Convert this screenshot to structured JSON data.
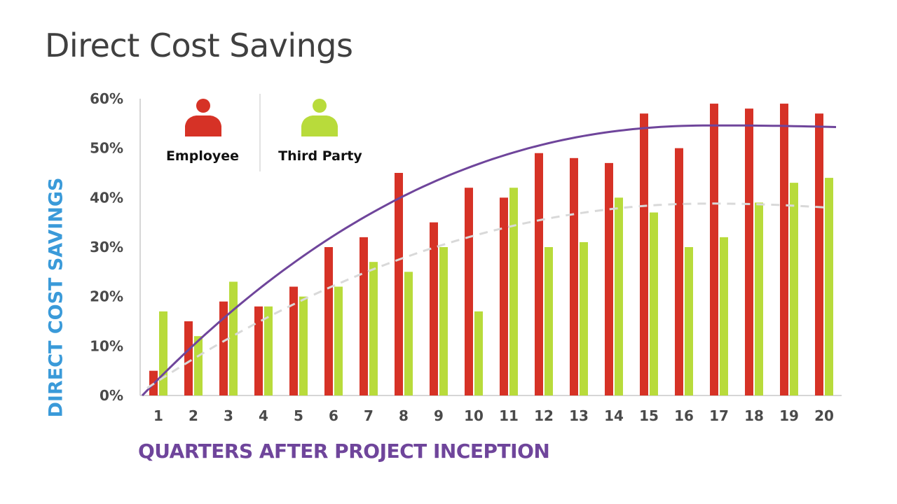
{
  "title": "Direct Cost Savings",
  "colors": {
    "employee": "#d63226",
    "third_party": "#b8db3b",
    "employee_trend": "#6f459b",
    "third_party_trend": "#d9d9d9",
    "y_axis_label": "#3a9ad9",
    "x_axis_label": "#6f459b"
  },
  "legend": {
    "items": [
      {
        "label": "Employee",
        "icon": "person-icon",
        "color": "#d63226"
      },
      {
        "label": "Third Party",
        "icon": "person-icon",
        "color": "#b8db3b"
      }
    ]
  },
  "chart_data": {
    "type": "bar",
    "title": "Direct Cost Savings",
    "xlabel": "QUARTERS AFTER PROJECT INCEPTION",
    "ylabel": "DIRECT COST SAVINGS",
    "categories": [
      "1",
      "2",
      "3",
      "4",
      "5",
      "6",
      "7",
      "8",
      "9",
      "10",
      "11",
      "12",
      "13",
      "14",
      "15",
      "16",
      "17",
      "18",
      "19",
      "20"
    ],
    "yticks": [
      "0%",
      "10%",
      "20%",
      "30%",
      "40%",
      "50%",
      "60%"
    ],
    "ylim": [
      0,
      60
    ],
    "grid": false,
    "legend_position": "top-left inside",
    "series": [
      {
        "name": "Employee",
        "values": [
          5,
          15,
          19,
          18,
          22,
          30,
          32,
          45,
          35,
          42,
          40,
          49,
          48,
          47,
          57,
          50,
          59,
          58,
          59,
          57
        ]
      },
      {
        "name": "Third Party",
        "values": [
          17,
          12,
          23,
          18,
          20,
          22,
          27,
          25,
          30,
          17,
          42,
          30,
          31,
          40,
          37,
          30,
          32,
          39,
          43,
          44
        ]
      }
    ],
    "trendlines": [
      {
        "series": "Employee",
        "style": "solid",
        "type": "polynomial"
      },
      {
        "series": "Third Party",
        "style": "dashed",
        "type": "polynomial"
      }
    ]
  }
}
